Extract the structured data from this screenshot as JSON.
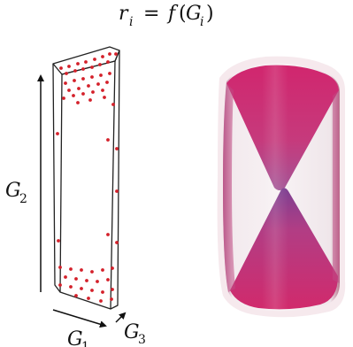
{
  "equation": {
    "lhs_var": "r",
    "lhs_sub": "i",
    "equals": "=",
    "func": "f",
    "open_paren": "(",
    "arg_var": "G",
    "arg_sub": "i",
    "close_paren": ")"
  },
  "axes": {
    "g2": {
      "var": "G",
      "sub": "2"
    },
    "g1": {
      "var": "G",
      "sub": "1"
    },
    "g3": {
      "var": "G",
      "sub": "3"
    }
  },
  "colors": {
    "dots": "#d4202a",
    "outline": "#222222",
    "crystal_magenta": "#c93c7a",
    "crystal_clear": "#ece6ea",
    "crystal_purple": "#8e3e8e"
  }
}
